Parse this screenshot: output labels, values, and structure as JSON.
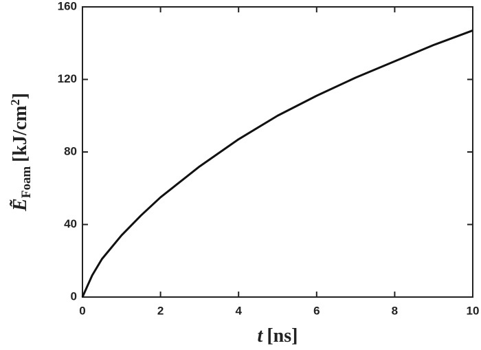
{
  "chart_data": {
    "type": "line",
    "x_label": {
      "symbol": "t",
      "unit": "[ns]"
    },
    "y_label": {
      "symbol": "Ẽ",
      "subscript": "Foam",
      "unit": "[kJ/cm",
      "unit_exponent": "2",
      "unit_close": "]"
    },
    "x": [
      0,
      0.25,
      0.5,
      1,
      1.5,
      2,
      3,
      4,
      5,
      6,
      7,
      8,
      9,
      10
    ],
    "series": [
      {
        "color": "#111111",
        "values": [
          0,
          12,
          21,
          34,
          45,
          55,
          72,
          87,
          100,
          111,
          121,
          130,
          139,
          147
        ]
      }
    ],
    "xlim": [
      0,
      10
    ],
    "xticks": [
      0,
      2,
      4,
      6,
      8,
      10
    ],
    "ylim": [
      0,
      160
    ],
    "yticks": [
      0,
      40,
      80,
      120,
      160
    ]
  }
}
